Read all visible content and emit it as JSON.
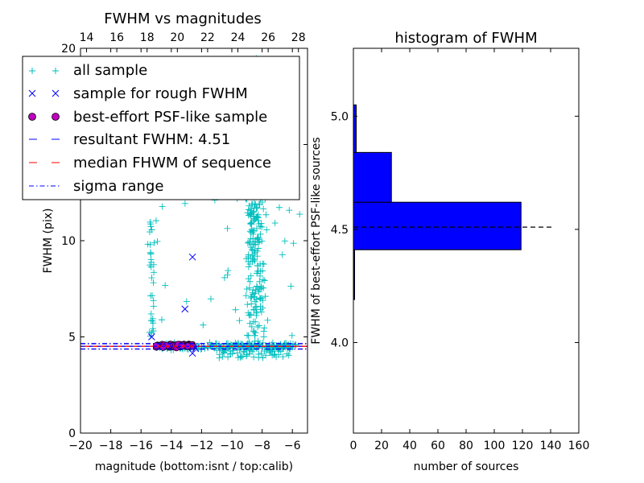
{
  "chart_data": [
    {
      "type": "scatter",
      "title": "FWHM vs magnitudes",
      "xlabel": "magnitude (bottom:isnt / top:calib)",
      "ylabel": "FWHM (pix)",
      "xlim": [
        -20,
        -5
      ],
      "ylim": [
        0,
        20
      ],
      "x_ticks": [
        -20,
        -18,
        -16,
        -14,
        -12,
        -10,
        -8,
        -6
      ],
      "x_tick_labels": [
        "−20",
        "−18",
        "−16",
        "−14",
        "−12",
        "−10",
        "−8",
        "−6"
      ],
      "y_ticks": [
        0,
        5,
        10,
        15,
        20
      ],
      "y_tick_labels": [
        "0",
        "5",
        "10",
        "15",
        "20"
      ],
      "top_axis": {
        "ticks": [
          14,
          16,
          18,
          20,
          22,
          24,
          26,
          28
        ],
        "tick_labels": [
          "14",
          "16",
          "18",
          "20",
          "22",
          "24",
          "26",
          "28"
        ],
        "offset": 33.6
      },
      "grid": false,
      "legend": {
        "placement": "upper-left",
        "entries": [
          {
            "label": "all sample",
            "marker": "+",
            "color": "#00bfbf"
          },
          {
            "label": "sample for rough FWHM",
            "marker": "x",
            "color": "#0000ff"
          },
          {
            "label": "best-effort PSF-like sample",
            "marker": "o",
            "color": "#bf00bf"
          },
          {
            "label": "resultant FWHM: 4.51",
            "line": "dashed",
            "color": "#0000ff"
          },
          {
            "label": "median FHWM of sequence",
            "line": "dashed",
            "color": "#ff0000"
          },
          {
            "label": "sigma range",
            "line": "dashdot",
            "color": "#0000ff"
          }
        ]
      },
      "series": [
        {
          "name": "sample for rough FWHM",
          "points": [
            [
              -15.3,
              5.0
            ],
            [
              -13.1,
              6.45
            ],
            [
              -12.6,
              9.15
            ],
            [
              -12.6,
              4.15
            ],
            [
              -12.4,
              4.4
            ]
          ]
        }
      ],
      "hlines": [
        {
          "name": "resultant FWHM: 4.51",
          "y": 4.51,
          "style": "dashed",
          "color": "#0000ff"
        },
        {
          "name": "median FHWM of sequence",
          "y": 4.51,
          "style": "dashed",
          "color": "#ff0000"
        },
        {
          "name": "sigma range",
          "y": 4.65,
          "style": "dashdot",
          "color": "#0000ff"
        },
        {
          "name": "sigma range",
          "y": 4.37,
          "style": "dashdot",
          "color": "#0000ff"
        }
      ]
    },
    {
      "type": "bar",
      "orientation": "horizontal",
      "title": "histogram of FWHM",
      "xlabel": "number of sources",
      "ylabel": "FWHM of best-effort PSF-like sources",
      "xlim": [
        0,
        160
      ],
      "ylim": [
        3.6,
        5.3
      ],
      "x_ticks": [
        0,
        20,
        40,
        60,
        80,
        100,
        120,
        140,
        160
      ],
      "y_ticks": [
        4.0,
        4.5,
        5.0
      ],
      "y_tick_labels": [
        "4.0",
        "4.5",
        "5.0"
      ],
      "bar_color": "#0000ff",
      "bins": [
        {
          "low": 4.19,
          "high": 4.41,
          "count": 0.5
        },
        {
          "low": 4.41,
          "high": 4.62,
          "count": 119
        },
        {
          "low": 4.62,
          "high": 4.84,
          "count": 27
        },
        {
          "low": 4.84,
          "high": 5.05,
          "count": 2
        }
      ],
      "hline": {
        "y": 4.51,
        "x_extent": [
          0,
          142
        ],
        "style": "dashed",
        "color": "#000000"
      }
    }
  ]
}
